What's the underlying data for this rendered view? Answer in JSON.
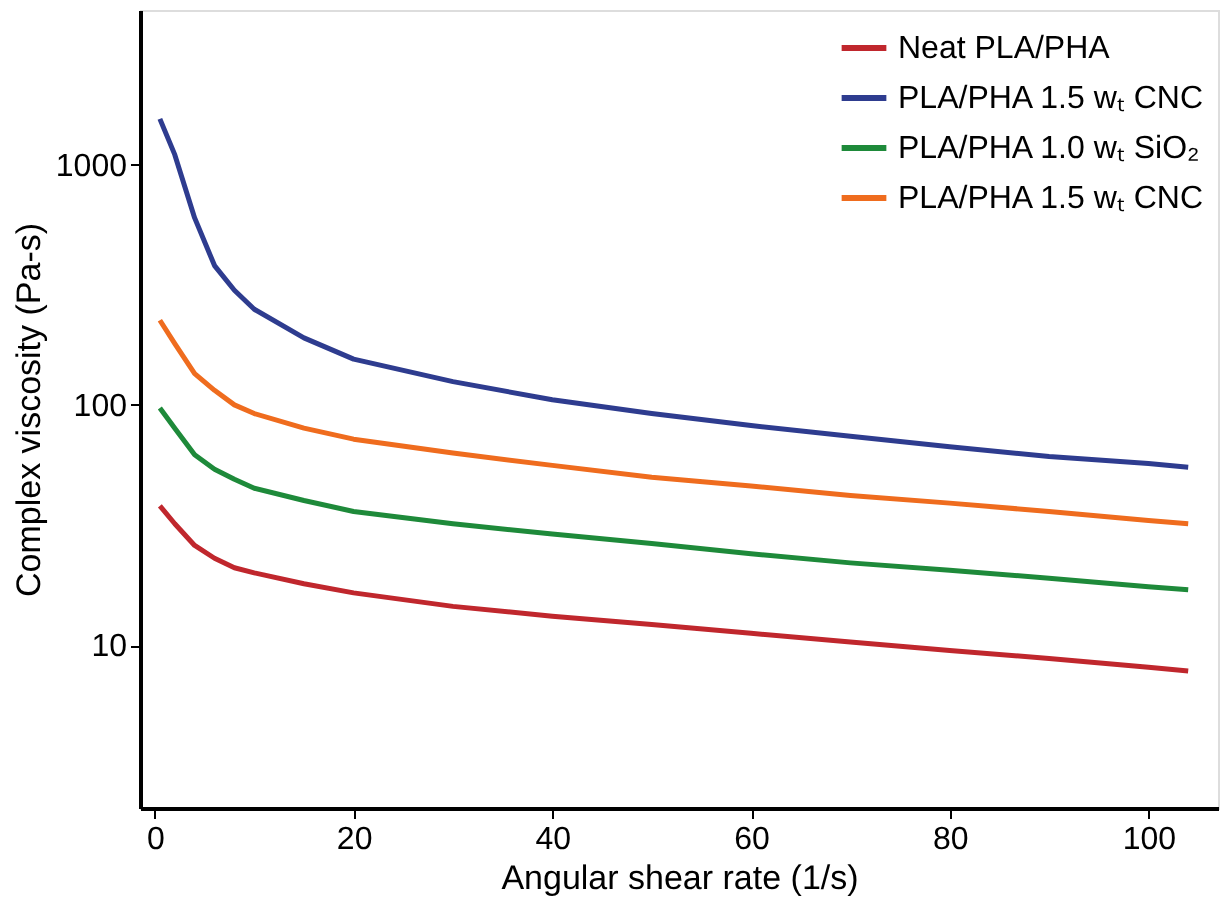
{
  "chart_data": {
    "type": "line",
    "xlabel": "Angular shear rate (1/s)",
    "ylabel": "Complex viscosity (Pa-s)",
    "log": "y",
    "grid": false,
    "legend": "top right",
    "marker": "none",
    "line_style": "solid",
    "xlim": [
      -1.5,
      107
    ],
    "xticks": [
      0,
      20,
      40,
      60,
      80,
      100
    ],
    "ylim": [
      2.1,
      4400
    ],
    "yticks": [
      10,
      100,
      1000
    ],
    "x": [
      0.5,
      2,
      4,
      6,
      8,
      10,
      15,
      20,
      30,
      40,
      50,
      60,
      70,
      80,
      90,
      100,
      104
    ],
    "series": [
      {
        "name": "Neat PLA/PHA",
        "color": "#c0272d",
        "values": [
          38,
          32,
          26,
          23,
          21,
          20,
          18,
          16.5,
          14.5,
          13.2,
          12.2,
          11.2,
          10.3,
          9.5,
          8.8,
          8.1,
          7.8
        ]
      },
      {
        "name": "PLA/PHA 1.5 wₜ CNC",
        "color": "#2e3c8f",
        "values": [
          1550,
          1100,
          600,
          380,
          300,
          250,
          190,
          155,
          125,
          105,
          92,
          82,
          74,
          67,
          61,
          57,
          55
        ]
      },
      {
        "name": "PLA/PHA 1.0 wₜ SiO₂",
        "color": "#1e8a3a",
        "values": [
          97,
          80,
          62,
          54,
          49,
          45,
          40,
          36,
          32,
          29,
          26.5,
          24,
          22,
          20.5,
          19,
          17.5,
          17
        ]
      },
      {
        "name": "PLA/PHA 1.5 wₜ CNC",
        "color": "#ef6c1e",
        "values": [
          225,
          180,
          135,
          115,
          100,
          92,
          80,
          72,
          63,
          56,
          50,
          46,
          42,
          39,
          36,
          33,
          32
        ]
      }
    ]
  }
}
